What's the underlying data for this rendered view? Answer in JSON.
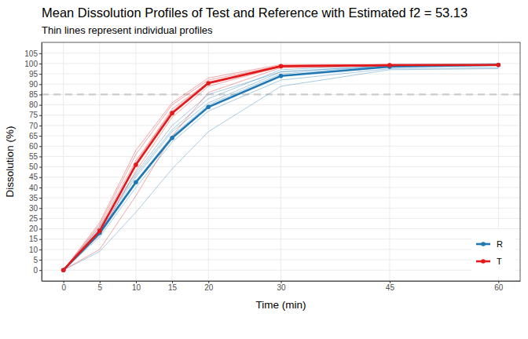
{
  "chart_data": {
    "type": "line",
    "title": "Mean Dissolution Profiles of Test and Reference with Estimated f2 = 53.13",
    "subtitle": "Thin lines represent individual profiles",
    "x_label": "Time (min)",
    "y_label": "Dissolution (%)",
    "x": [
      0,
      5,
      10,
      15,
      20,
      30,
      45,
      60
    ],
    "xlim": [
      -3,
      63
    ],
    "xticks": [
      0,
      5,
      10,
      15,
      20,
      30,
      45,
      60
    ],
    "ylim": [
      -5.25,
      110.25
    ],
    "yticks": [
      0,
      5,
      10,
      15,
      20,
      25,
      30,
      35,
      40,
      45,
      50,
      55,
      60,
      65,
      70,
      75,
      80,
      85,
      90,
      95,
      100,
      105
    ],
    "hline": 85,
    "grid": true,
    "legend": "bottom-right",
    "marker": "circle",
    "series": [
      {
        "name": "R",
        "color": "#1f78b4",
        "values": [
          0,
          18,
          42.5,
          64,
          79,
          94,
          98.5,
          99.3
        ],
        "individual": [
          [
            0,
            9,
            28,
            49,
            67,
            89,
            97,
            97.5
          ],
          [
            0,
            16,
            40,
            62,
            77,
            92,
            97.5,
            98
          ],
          [
            0,
            17,
            42,
            64,
            79,
            94,
            98.5,
            99
          ],
          [
            0,
            19,
            45,
            67,
            81,
            96,
            99,
            99.5
          ],
          [
            0,
            20,
            46,
            68,
            83,
            97,
            99.5,
            100
          ],
          [
            0,
            18,
            43,
            65,
            80,
            95,
            99,
            99.5
          ],
          [
            0,
            21,
            47,
            70,
            85,
            96,
            99,
            99.5
          ]
        ]
      },
      {
        "name": "T",
        "color": "#e31a1c",
        "values": [
          0,
          19,
          51,
          76,
          90.5,
          98.7,
          99.2,
          99.3
        ],
        "individual": [
          [
            0,
            10,
            36,
            65,
            86,
            98,
            99,
            99
          ],
          [
            0,
            19,
            52,
            78,
            91,
            98.5,
            99,
            99.5
          ],
          [
            0,
            22,
            56,
            80,
            92,
            99,
            99.5,
            99.5
          ],
          [
            0,
            17,
            48,
            74,
            89,
            98.5,
            99,
            99
          ],
          [
            0,
            21,
            53,
            77,
            91,
            99,
            99.5,
            99.5
          ],
          [
            0,
            23,
            58,
            81,
            93,
            99.5,
            99.5,
            99.5
          ]
        ]
      }
    ]
  }
}
